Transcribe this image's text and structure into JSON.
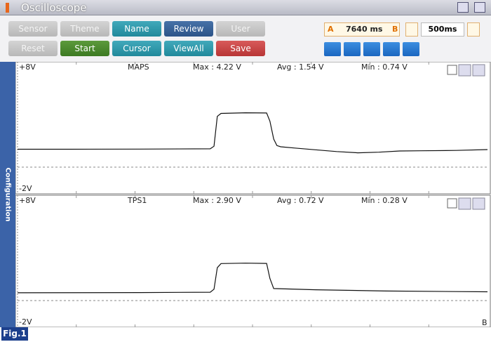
{
  "window": {
    "title": "Oscilloscope"
  },
  "toolbar": {
    "row1": [
      "Sensor",
      "Theme",
      "Name",
      "Review",
      "User Setting"
    ],
    "row2": [
      "Reset",
      "Start",
      "Cursor",
      "ViewAll",
      "Save"
    ],
    "cursor_a": "A",
    "cursor_time": "7640 ms",
    "cursor_b": "B",
    "time_div": "500ms"
  },
  "side_tab": "Configuration",
  "channels": [
    {
      "name": "MAPS",
      "scale_top": "+8V",
      "scale_bottom": "-2V",
      "max": "Max : 4.22 V",
      "avg": "Avg : 1.54 V",
      "min": "Min : 0.74 V",
      "ylim": [
        -2,
        8
      ],
      "trace": {
        "t": [
          0,
          11.2,
          26.1,
          41.0,
          41.8,
          42.5,
          43.3,
          48.5,
          53.0,
          53.7,
          54.5,
          55.2,
          56.0,
          59.0,
          63.4,
          67.9,
          72.4,
          76.9,
          81.3,
          85.8,
          93.3,
          100
        ],
        "v": [
          1.15,
          1.15,
          1.16,
          1.18,
          1.4,
          3.9,
          4.15,
          4.2,
          4.18,
          3.5,
          2.0,
          1.45,
          1.35,
          1.25,
          1.1,
          0.95,
          0.85,
          0.9,
          1.0,
          1.02,
          1.05,
          1.12
        ]
      }
    },
    {
      "name": "TPS1",
      "scale_top": "+8V",
      "scale_bottom": "-2V",
      "max": "Max : 2.90 V",
      "avg": "Avg : 0.72 V",
      "min": "Min : 0.28 V",
      "ylim": [
        -2,
        8
      ],
      "trace": {
        "t": [
          0,
          26.1,
          41.0,
          41.8,
          42.5,
          43.3,
          48.5,
          53.0,
          53.7,
          54.5,
          63.4,
          78.4,
          93.3,
          100
        ],
        "v": [
          0.3,
          0.32,
          0.35,
          0.6,
          2.4,
          2.75,
          2.78,
          2.76,
          1.5,
          0.65,
          0.55,
          0.45,
          0.4,
          0.38
        ]
      }
    }
  ],
  "marker": "B",
  "figure_label": "Fig.1"
}
